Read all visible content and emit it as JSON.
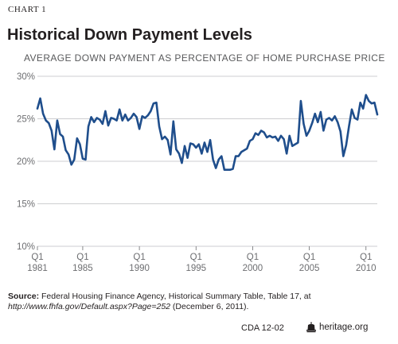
{
  "header": {
    "chart_label": "CHART 1",
    "title": "Historical Down Payment Levels",
    "subtitle": "AVERAGE DOWN PAYMENT AS PERCENTAGE OF HOME PURCHASE PRICE"
  },
  "chart_data": {
    "type": "line",
    "title": "Historical Down Payment Levels",
    "ylabel": "AVERAGE DOWN PAYMENT AS PERCENTAGE OF HOME PURCHASE PRICE",
    "xlabel": "",
    "ylim": [
      10,
      30
    ],
    "yticks": [
      "10%",
      "15%",
      "20%",
      "25%",
      "30%"
    ],
    "grid": "horizontal",
    "line_color": "#1f4e8c",
    "grid_color": "#bcbec0",
    "xticks": [
      {
        "q": "Q1",
        "year": "1981",
        "t": 0
      },
      {
        "q": "Q1",
        "year": "1985",
        "t": 16
      },
      {
        "q": "Q1",
        "year": "1990",
        "t": 36
      },
      {
        "q": "Q1",
        "year": "1995",
        "t": 56
      },
      {
        "q": "Q1",
        "year": "2000",
        "t": 76
      },
      {
        "q": "Q1",
        "year": "2005",
        "t": 96
      },
      {
        "q": "Q1",
        "year": "2010",
        "t": 116
      }
    ],
    "x_first_period": "1981 Q1",
    "x_last_period": "2011 Q1",
    "values": [
      26.2,
      27.4,
      25.6,
      24.8,
      24.5,
      23.6,
      21.4,
      24.8,
      23.2,
      22.9,
      21.3,
      20.8,
      19.6,
      20.2,
      22.7,
      22.0,
      20.3,
      20.2,
      24.1,
      25.2,
      24.6,
      25.1,
      24.9,
      24.4,
      25.9,
      24.2,
      25.1,
      25.0,
      24.8,
      26.1,
      24.8,
      25.5,
      24.8,
      25.1,
      25.6,
      25.2,
      23.8,
      25.3,
      25.1,
      25.4,
      25.9,
      26.8,
      26.9,
      24.1,
      22.6,
      22.9,
      22.5,
      20.8,
      24.7,
      21.4,
      20.9,
      19.8,
      21.8,
      20.4,
      22.1,
      22.0,
      21.6,
      22.0,
      20.9,
      22.2,
      21.1,
      22.5,
      20.2,
      19.2,
      20.2,
      20.6,
      19.0,
      19.0,
      19.0,
      19.1,
      20.6,
      20.6,
      21.1,
      21.3,
      21.5,
      22.4,
      22.6,
      23.3,
      23.1,
      23.6,
      23.4,
      22.8,
      23.0,
      22.8,
      22.9,
      22.4,
      23.0,
      22.6,
      20.9,
      23.0,
      21.8,
      22.0,
      22.2,
      27.1,
      24.4,
      23.0,
      23.6,
      24.5,
      25.6,
      24.6,
      25.8,
      23.6,
      24.9,
      25.1,
      24.8,
      25.3,
      24.6,
      23.5,
      20.6,
      21.9,
      24.1,
      26.1,
      25.1,
      24.9,
      26.9,
      26.2,
      27.8,
      27.1,
      26.8,
      26.9,
      25.5
    ]
  },
  "source": {
    "label": "Source:",
    "text_before_url": " Federal Housing Finance Agency, Historical Summary Table, Table 17, at",
    "url": "http://www.fhfa.gov/Default.aspx?Page=252",
    "text_after_url": " (December 6, 2011)."
  },
  "footer": {
    "id": "CDA 12-02",
    "brand": "heritage.org",
    "brand_icon": "bell-icon"
  }
}
